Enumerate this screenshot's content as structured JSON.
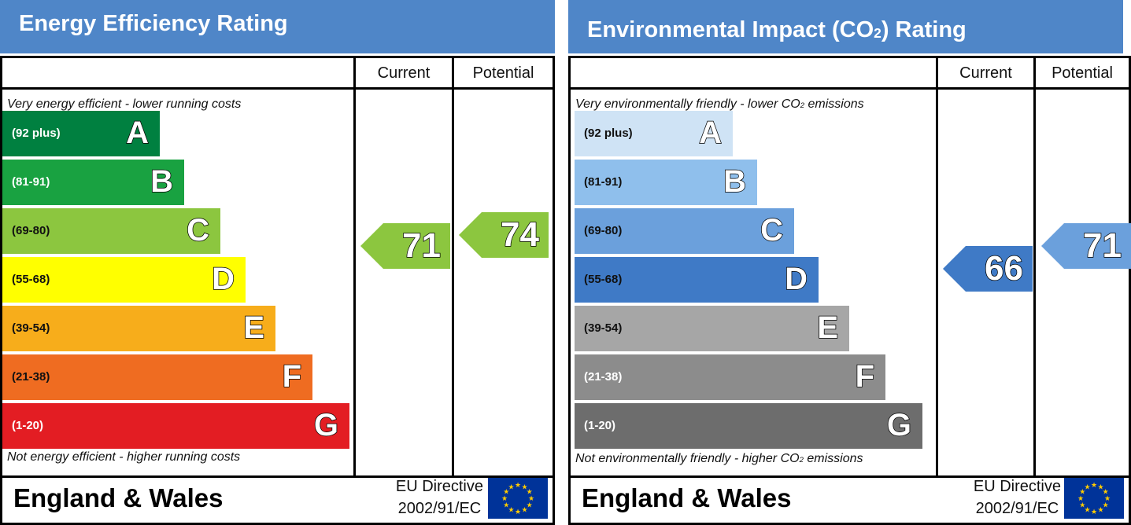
{
  "chart_data": [
    {
      "type": "bar",
      "title": "Energy Efficiency Rating",
      "columns": [
        "Current",
        "Potential"
      ],
      "top_caption": "Very energy efficient - lower running costs",
      "bottom_caption": "Not energy efficient - higher running costs",
      "bands": [
        {
          "letter": "A",
          "range": "(92 plus)",
          "color": "#008040"
        },
        {
          "letter": "B",
          "range": "(81-91)",
          "color": "#19a241"
        },
        {
          "letter": "C",
          "range": "(69-80)",
          "color": "#8cc63f"
        },
        {
          "letter": "D",
          "range": "(55-68)",
          "color": "#ffff00"
        },
        {
          "letter": "E",
          "range": "(39-54)",
          "color": "#f7ad1b"
        },
        {
          "letter": "F",
          "range": "(21-38)",
          "color": "#ef6c21"
        },
        {
          "letter": "G",
          "range": "(1-20)",
          "color": "#e31d23"
        }
      ],
      "current": {
        "value": 71,
        "label": "71",
        "color": "#8cc63f"
      },
      "potential": {
        "value": 74,
        "label": "74",
        "color": "#8cc63f"
      },
      "region": "England & Wales",
      "directive_line1": "EU Directive",
      "directive_line2": "2002/91/EC",
      "flag_icon": "eu-flag-icon"
    },
    {
      "type": "bar",
      "title_main": "Environmental Impact (CO",
      "title_sub": "2",
      "title_end": ") Rating",
      "columns": [
        "Current",
        "Potential"
      ],
      "top_caption_main": "Very environmentally friendly - lower CO",
      "top_caption_sub": "2",
      "top_caption_end": " emissions",
      "bottom_caption_main": "Not environmentally friendly - higher CO",
      "bottom_caption_sub": "2",
      "bottom_caption_end": " emissions",
      "bands": [
        {
          "letter": "A",
          "range": "(92 plus)",
          "color": "#cfe3f5"
        },
        {
          "letter": "B",
          "range": "(81-91)",
          "color": "#8fbfec"
        },
        {
          "letter": "C",
          "range": "(69-80)",
          "color": "#6ba0dc"
        },
        {
          "letter": "D",
          "range": "(55-68)",
          "color": "#3f7ac6"
        },
        {
          "letter": "E",
          "range": "(39-54)",
          "color": "#a6a6a6"
        },
        {
          "letter": "F",
          "range": "(21-38)",
          "color": "#8c8c8c"
        },
        {
          "letter": "G",
          "range": "(1-20)",
          "color": "#6d6d6d"
        }
      ],
      "current": {
        "value": 66,
        "label": "66",
        "color": "#3f7ac6"
      },
      "potential": {
        "value": 71,
        "label": "71",
        "color": "#6ba0dc"
      },
      "region": "England & Wales",
      "directive_line1": "EU Directive",
      "directive_line2": "2002/91/EC",
      "flag_icon": "eu-flag-icon"
    }
  ]
}
